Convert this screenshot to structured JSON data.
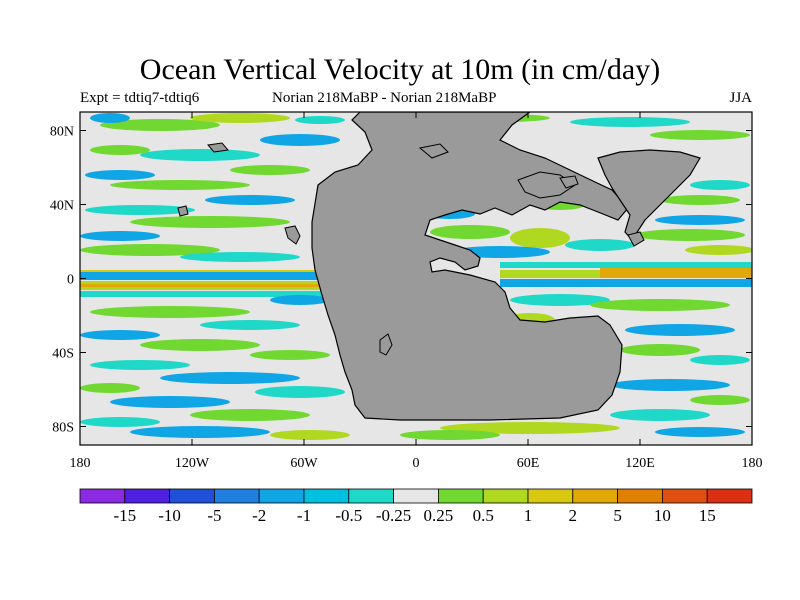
{
  "title": "Ocean Vertical Velocity at 10m (in cm/day)",
  "subtitle_left": "Expt = tdtiq7-tdtiq6",
  "subtitle_center": "Norian   218MaBP - Norian   218MaBP",
  "subtitle_right": "JJA",
  "map": {
    "lon_ticks": [
      {
        "value": -180,
        "label": "180"
      },
      {
        "value": -120,
        "label": "120W"
      },
      {
        "value": -60,
        "label": "60W"
      },
      {
        "value": 0,
        "label": "0"
      },
      {
        "value": 60,
        "label": "60E"
      },
      {
        "value": 120,
        "label": "120E"
      },
      {
        "value": 180,
        "label": "180"
      }
    ],
    "lat_ticks": [
      {
        "value": 80,
        "label": "80N"
      },
      {
        "value": 40,
        "label": "40N"
      },
      {
        "value": 0,
        "label": "0"
      },
      {
        "value": -40,
        "label": "40S"
      },
      {
        "value": -80,
        "label": "80S"
      }
    ],
    "land_color": "#9a9a9a",
    "ocean_base_color": "#e6e6e6"
  },
  "colorbar": {
    "colors": [
      "#8a2be2",
      "#5020e0",
      "#2050d8",
      "#1f80e0",
      "#10a6e6",
      "#00c0e0",
      "#20d8c8",
      "#e6e6e6",
      "#70d830",
      "#b0d820",
      "#d8c810",
      "#e0a808",
      "#e08000",
      "#e05010",
      "#d83010"
    ],
    "labels": [
      "-15",
      "-10",
      "-5",
      "-2",
      "-1",
      "-0.5",
      "-0.25",
      "0.25",
      "0.5",
      "1",
      "2",
      "5",
      "10",
      "15"
    ]
  }
}
